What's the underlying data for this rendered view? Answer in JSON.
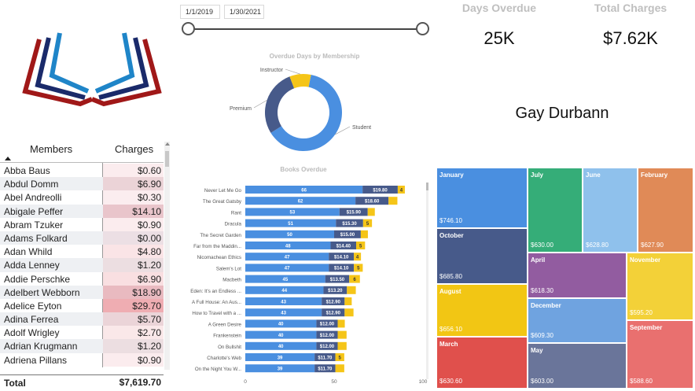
{
  "slicer": {
    "start_date": "1/1/2019",
    "end_date": "1/30/2021"
  },
  "kpis": {
    "days_overdue": {
      "label": "Days Overdue",
      "value": "25K"
    },
    "total_charges": {
      "label": "Total Charges",
      "value": "$7.62K"
    }
  },
  "customer_name": "Gay Durbann",
  "table": {
    "col_members": "Members",
    "col_charges": "Charges",
    "rows": [
      {
        "name": "Abba Baus",
        "charge": "$0.60",
        "amount": 0.6
      },
      {
        "name": "Abdul Domm",
        "charge": "$6.90",
        "amount": 6.9
      },
      {
        "name": "Abel Andreolli",
        "charge": "$0.30",
        "amount": 0.3
      },
      {
        "name": "Abigale Peffer",
        "charge": "$14.10",
        "amount": 14.1
      },
      {
        "name": "Abram Tzuker",
        "charge": "$0.90",
        "amount": 0.9
      },
      {
        "name": "Adams Folkard",
        "charge": "$0.00",
        "amount": 0.0
      },
      {
        "name": "Adan Whild",
        "charge": "$4.80",
        "amount": 4.8
      },
      {
        "name": "Adda Lenney",
        "charge": "$1.20",
        "amount": 1.2
      },
      {
        "name": "Addie Perschke",
        "charge": "$6.90",
        "amount": 6.9
      },
      {
        "name": "Adelbert Webborn",
        "charge": "$18.90",
        "amount": 18.9
      },
      {
        "name": "Adelice Eyton",
        "charge": "$29.70",
        "amount": 29.7
      },
      {
        "name": "Adina Ferrea",
        "charge": "$5.70",
        "amount": 5.7
      },
      {
        "name": "Adolf Wrigley",
        "charge": "$2.70",
        "amount": 2.7
      },
      {
        "name": "Adrian Krugmann",
        "charge": "$1.20",
        "amount": 1.2
      },
      {
        "name": "Adriena Pillans",
        "charge": "$0.90",
        "amount": 0.9
      }
    ],
    "total_label": "Total",
    "total_value": "$7,619.70"
  },
  "donut": {
    "title": "Overdue Days by Membership",
    "colors": [
      "#4a8fe0",
      "#475a8a",
      "#f5c518"
    ],
    "slices": [
      {
        "name": "Student",
        "value": 63
      },
      {
        "name": "Premium",
        "value": 28
      },
      {
        "name": "Instructor",
        "value": 9
      }
    ]
  },
  "chart_data": {
    "type": "bar",
    "title": "Books Overdue",
    "categories": [
      "Never Let Me Go",
      "The Great Gatsby",
      "Rant",
      "Dracula",
      "The Secret Garden",
      "Far from the Maddin...",
      "Nicomachean Ethics",
      "Salem's Lot",
      "Macbeth",
      "Eden: It's an Endless ...",
      "A Full House: An Aus...",
      "How to Travel with a ...",
      "A Green Desire",
      "Frankenstein",
      "On Bullshit",
      "Charlotte's Web",
      "On the Night You W..."
    ],
    "series": [
      {
        "values": [
          66,
          62,
          53,
          51,
          50,
          48,
          47,
          47,
          45,
          44,
          43,
          43,
          40,
          40,
          40,
          39,
          39
        ]
      },
      {
        "values": [
          19.8,
          18.6,
          15.9,
          15.3,
          15.0,
          14.4,
          14.1,
          14.1,
          13.5,
          13.2,
          12.9,
          12.9,
          12.0,
          12.0,
          12.0,
          11.7,
          11.7
        ],
        "labels": [
          "$19.80",
          "$18.60",
          "$15.90",
          "$15.30",
          "$15.00",
          "$14.40",
          "$14.10",
          "$14.10",
          "$13.50",
          "$13.20",
          "$12.90",
          "$12.90",
          "$12.00",
          "$12.00",
          "$12.00",
          "$11.70",
          "$11.70"
        ]
      },
      {
        "values": [
          4,
          5,
          4,
          5,
          4,
          5,
          4,
          5,
          6,
          5,
          4,
          5,
          4,
          5,
          5,
          5,
          5
        ]
      }
    ],
    "third_labels": [
      "4",
      "",
      "",
      "5",
      "",
      "5",
      "4",
      "5",
      "6",
      "",
      "",
      "",
      "",
      "",
      "",
      "5",
      ""
    ],
    "xlim": [
      0,
      100
    ],
    "xticks": [
      "0",
      "50",
      "100"
    ],
    "colors": [
      "#4a8fe0",
      "#475a8a",
      "#f5c518"
    ]
  },
  "treemap": {
    "tiles": [
      {
        "name": "January",
        "value": "$746.10",
        "color": "#4a8fe0"
      },
      {
        "name": "July",
        "value": "$630.00",
        "color": "#35ad78"
      },
      {
        "name": "June",
        "value": "$628.80",
        "color": "#8fc1ec"
      },
      {
        "name": "February",
        "value": "$627.90",
        "color": "#e08a57"
      },
      {
        "name": "October",
        "value": "$685.80",
        "color": "#475a8a"
      },
      {
        "name": "April",
        "value": "$618.30",
        "color": "#925ca0"
      },
      {
        "name": "November",
        "value": "$595.20",
        "color": "#f3d138"
      },
      {
        "name": "August",
        "value": "$656.10",
        "color": "#f2c614"
      },
      {
        "name": "December",
        "value": "$609.30",
        "color": "#6fa3e0"
      },
      {
        "name": "September",
        "value": "$588.60",
        "color": "#e9706f"
      },
      {
        "name": "March",
        "value": "$630.60",
        "color": "#e0504c"
      },
      {
        "name": "May",
        "value": "$603.00",
        "color": "#6a759a"
      }
    ]
  }
}
